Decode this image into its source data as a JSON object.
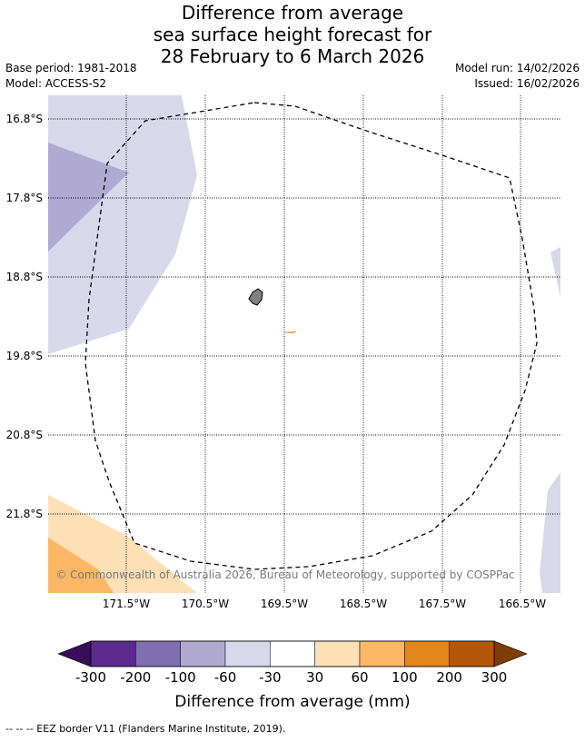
{
  "title": {
    "line1": "Difference from average",
    "line2": "sea surface height forecast for",
    "line3": "28 February to 6 March 2026"
  },
  "meta": {
    "base_period": "Base period: 1981-2018",
    "model": "Model: ACCESS-S2",
    "model_run": "Model run: 14/02/2026",
    "issued": "Issued: 16/02/2026"
  },
  "map": {
    "lat_labels": [
      "16.8°S",
      "17.8°S",
      "18.8°S",
      "19.8°S",
      "20.8°S",
      "21.8°S"
    ],
    "lon_labels": [
      "171.5°W",
      "170.5°W",
      "169.5°W",
      "168.5°W",
      "167.5°W",
      "166.5°W"
    ],
    "copyright": "© Commonwealth of Australia 2026, Bureau of Meteorology, supported by COSPPac"
  },
  "colorbar": {
    "ticks": [
      "-300",
      "-200",
      "-100",
      "-60",
      "-30",
      "30",
      "60",
      "100",
      "200",
      "300"
    ],
    "colors": [
      "#5b2a8e",
      "#7f6fb0",
      "#b0a9d2",
      "#d7d8ea",
      "#ffffff",
      "#fde0b6",
      "#fbb765",
      "#e3861c",
      "#b35808"
    ],
    "under_color": "#3a0c5c",
    "over_color": "#7f3b08",
    "label": "Difference from average (mm)"
  },
  "footer": {
    "legend_text": "--  --  -- EEZ border V11 (Flanders Marine Institute, 2019)."
  }
}
